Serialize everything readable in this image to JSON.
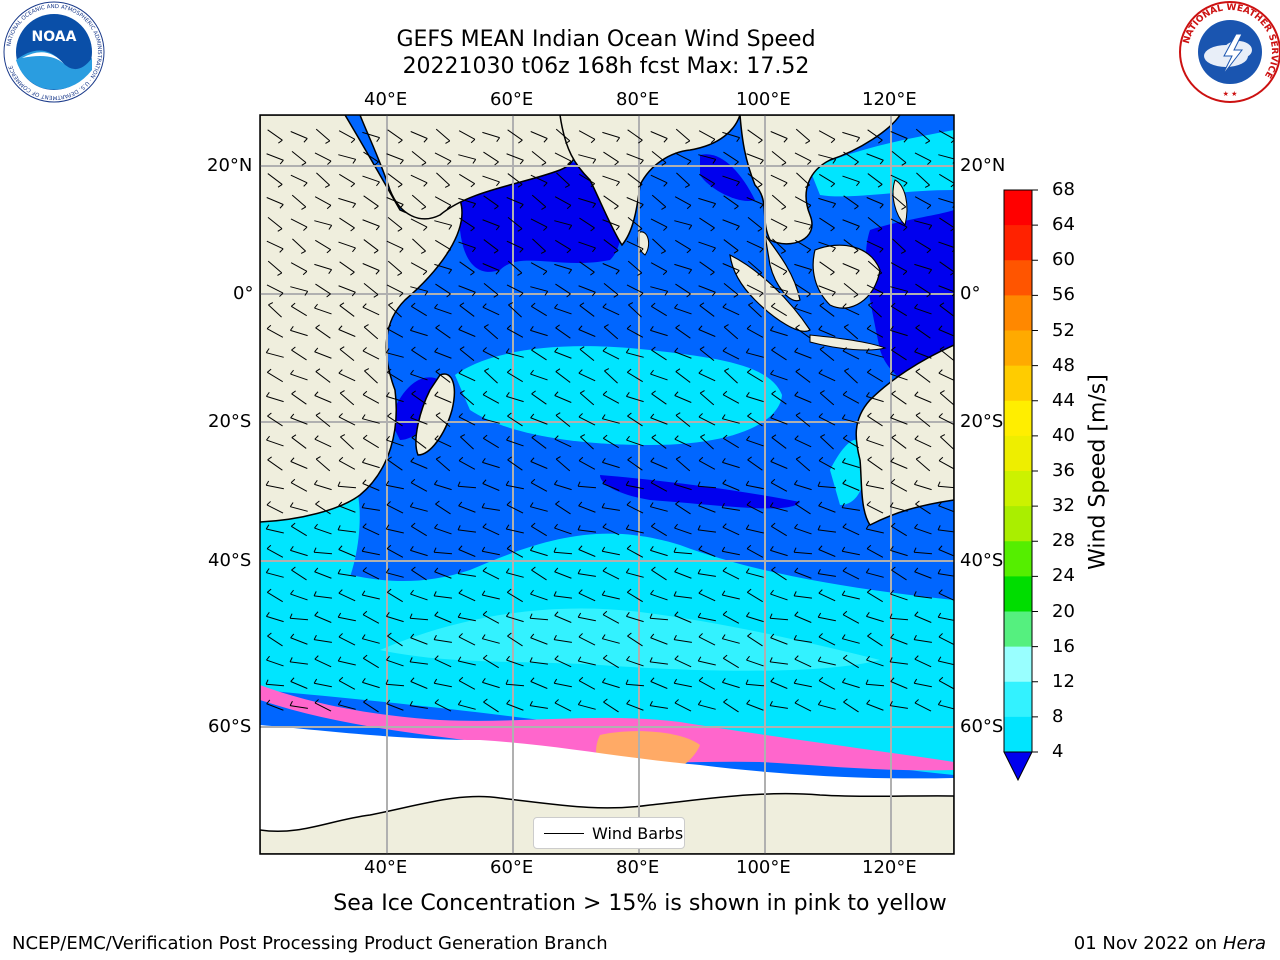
{
  "title_line1": "GEFS MEAN Indian Ocean Wind Speed",
  "title_line2": "20221030 t06z 168h fcst   Max: 17.52",
  "lon_labels": [
    "40°E",
    "60°E",
    "80°E",
    "100°E",
    "120°E"
  ],
  "lat_labels": [
    "20°N",
    "0°",
    "20°S",
    "40°S",
    "60°S"
  ],
  "legend_label": "Wind Barbs",
  "colorbar": {
    "title": "Wind Speed [m/s]",
    "ticks": [
      "4",
      "8",
      "12",
      "16",
      "20",
      "24",
      "28",
      "32",
      "36",
      "40",
      "44",
      "48",
      "52",
      "56",
      "60",
      "64",
      "68"
    ],
    "colors": [
      "#0066ff",
      "#00e5ff",
      "#33f2ff",
      "#99ffff",
      "#55f07f",
      "#00dd00",
      "#55ee00",
      "#aaee00",
      "#ccf200",
      "#eeee00",
      "#ffee00",
      "#ffcc00",
      "#ffaa00",
      "#ff8800",
      "#ff5500",
      "#ff2200",
      "#ff0000"
    ],
    "under_color": "#0000ee"
  },
  "caption": "Sea Ice Concentration > 15% is shown in pink to yellow",
  "footer_left": "NCEP/EMC/Verification Post Processing Product Generation Branch",
  "footer_date": "01 Nov 2022 on",
  "footer_host": "Hera",
  "logos": {
    "noaa": {
      "text": "NOAA",
      "ring_text": "NATIONAL OCEANIC AND ATMOSPHERIC ADMINISTRATION · U.S. DEPARTMENT OF COMMERCE"
    },
    "nws": {
      "ring_text": "NATIONAL WEATHER SERVICE"
    }
  }
}
